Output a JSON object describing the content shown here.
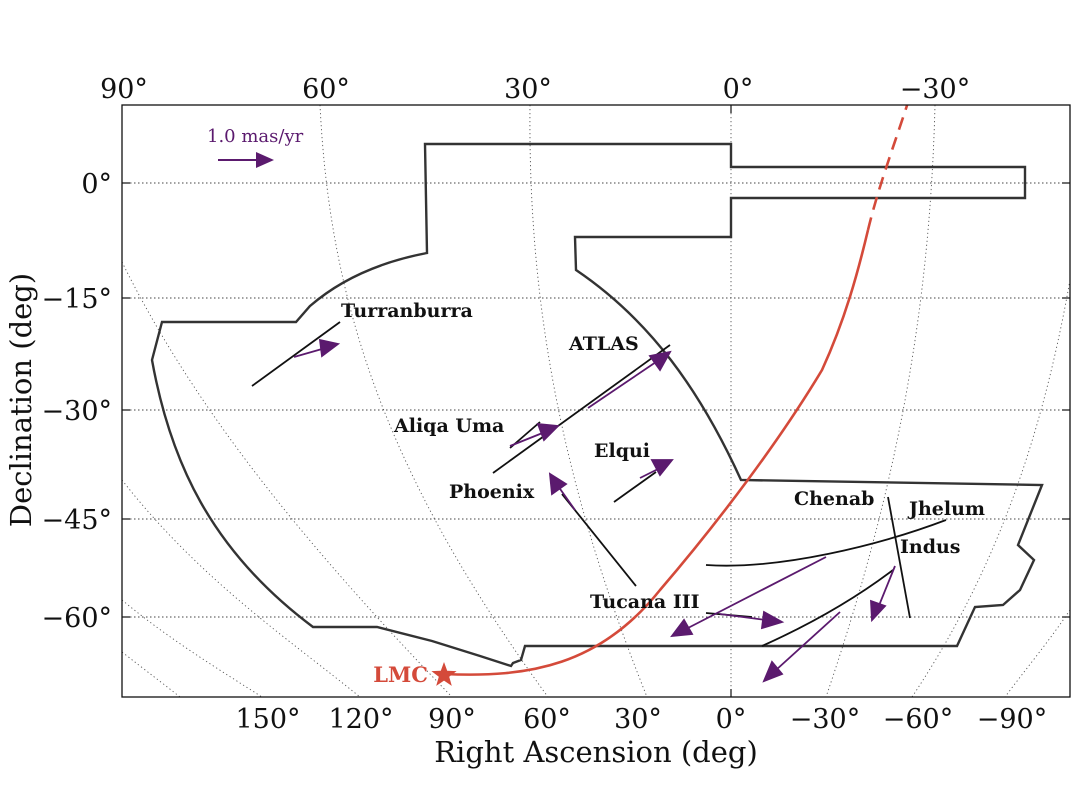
{
  "chart_data": {
    "type": "scatter",
    "xlabel": "Right Ascension (deg)",
    "ylabel": "Declination (deg)",
    "top_ticks": [
      "90°",
      "60°",
      "30°",
      "0°",
      "−30°"
    ],
    "bottom_ticks": [
      "150°",
      "120°",
      "90°",
      "60°",
      "30°",
      "0°",
      "−30°",
      "−60°",
      "−90°"
    ],
    "y_ticks": [
      "0°",
      "−15°",
      "−30°",
      "−45°",
      "−60°"
    ],
    "dec_gridlines": [
      0,
      -15,
      -30,
      -45,
      -60
    ],
    "scale_arrow_label": "1.0 mas/yr",
    "streams": [
      {
        "name": "Turranburra",
        "ra": 70,
        "dec": -23
      },
      {
        "name": "ATLAS",
        "ra": 20,
        "dec": -27
      },
      {
        "name": "Aliqa Uma",
        "ra": 35,
        "dec": -34
      },
      {
        "name": "Elqui",
        "ra": 15,
        "dec": -39
      },
      {
        "name": "Phoenix",
        "ra": 25,
        "dec": -50
      },
      {
        "name": "Chenab",
        "ra": -28,
        "dec": -52
      },
      {
        "name": "Jhelum",
        "ra": -15,
        "dec": -50
      },
      {
        "name": "Indus",
        "ra": -30,
        "dec": -58
      },
      {
        "name": "Tucana III",
        "ra": 2,
        "dec": -59
      }
    ],
    "lmc": {
      "label": "LMC",
      "ra": 80,
      "dec": -69
    },
    "colors": {
      "footprint": "#333333",
      "orbit": "#d44a3a",
      "proper_motion": "#5b1a6e",
      "tracks": "#111111",
      "grid": "#555555"
    }
  }
}
